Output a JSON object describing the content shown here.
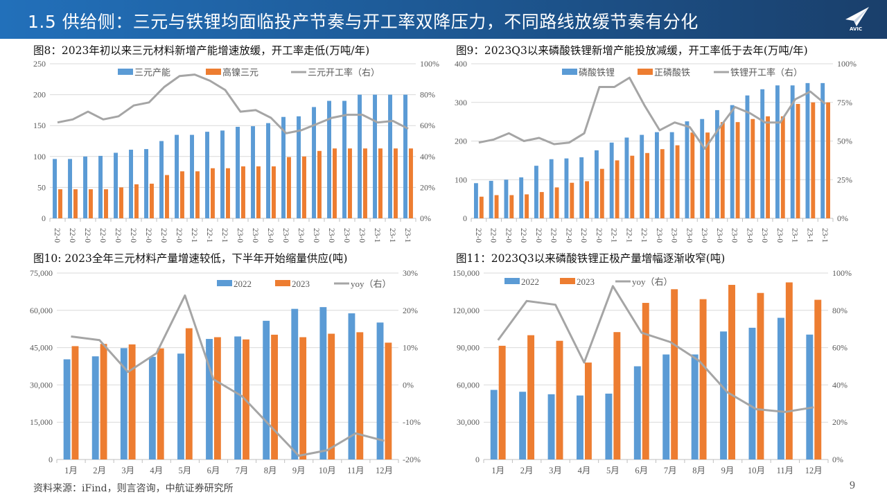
{
  "header": {
    "title": "1.5 供给侧：三元与铁锂均面临投产节奏与开工率双降压力，不同路线放缓节奏有分化",
    "logo_text": "AVIC"
  },
  "colors": {
    "header": "#1f5a96",
    "bar_a": "#5b9bd5",
    "bar_b": "#ed7d31",
    "line": "#a5a5a5"
  },
  "footer": {
    "source": "资料来源：iFind，则言咨询，中航证券研究所",
    "page": "9"
  },
  "chart_data": [
    {
      "type": "bar+line",
      "title": "图8：2023年初以来三元材料新增产能增速放缓，开工率走低(万吨/年)",
      "categories": [
        "22-01",
        "22-02",
        "22-03",
        "22-04",
        "22-05",
        "22-06",
        "22-07",
        "22-08",
        "22-09",
        "22-10",
        "22-11",
        "22-12",
        "23-01",
        "23-02",
        "23-03",
        "23-04",
        "23-05",
        "23-06",
        "23-07",
        "23-08",
        "23-09",
        "23-10",
        "23-11",
        "23-12"
      ],
      "ylim": [
        0,
        250
      ],
      "y2lim": [
        0,
        100
      ],
      "yticks": [
        "0",
        "50",
        "100",
        "150",
        "200",
        "250"
      ],
      "y2ticks": [
        "0%",
        "20%",
        "40%",
        "60%",
        "80%",
        "100%"
      ],
      "grid": true,
      "legend": "top",
      "series": [
        {
          "name": "三元产能",
          "kind": "bar",
          "values": [
            96,
            96,
            100,
            101,
            106,
            111,
            112,
            125,
            135,
            135,
            140,
            142,
            148,
            149,
            154,
            164,
            165,
            180,
            190,
            190,
            200,
            200,
            200,
            200
          ]
        },
        {
          "name": "高镍三元",
          "kind": "bar",
          "values": [
            47,
            47,
            47,
            47,
            50,
            55,
            56,
            70,
            76,
            76,
            81,
            81,
            84,
            84,
            84,
            99,
            100,
            109,
            113,
            113,
            113,
            113,
            113,
            113
          ]
        },
        {
          "name": "三元开工率（右）",
          "kind": "line",
          "axis": "right",
          "values": [
            62,
            64,
            69,
            64,
            66,
            73,
            75,
            85,
            92,
            93,
            89,
            83,
            69,
            70,
            65,
            55,
            57,
            61,
            65,
            67,
            67,
            62,
            63,
            58
          ]
        }
      ]
    },
    {
      "type": "bar+line",
      "title": "图9：2023Q3以来磷酸铁锂新增产能投放减缓，开工率低于去年(万吨/年)",
      "categories": [
        "22-01",
        "22-02",
        "22-03",
        "22-04",
        "22-05",
        "22-06",
        "22-07",
        "22-08",
        "22-09",
        "22-10",
        "22-11",
        "22-12",
        "23-01",
        "23-02",
        "23-03",
        "23-04",
        "23-05",
        "23-06",
        "23-07",
        "23-08",
        "23-09",
        "23-10",
        "23-11",
        "23-12"
      ],
      "ylim": [
        0,
        400
      ],
      "y2lim": [
        0,
        100
      ],
      "yticks": [
        "0",
        "100",
        "200",
        "300",
        "400"
      ],
      "y2ticks": [
        "0%",
        "25%",
        "50%",
        "75%",
        "100%"
      ],
      "grid": true,
      "legend": "top",
      "series": [
        {
          "name": "磷酸铁锂",
          "kind": "bar",
          "values": [
            91,
            97,
            100,
            106,
            136,
            153,
            155,
            158,
            176,
            196,
            209,
            216,
            223,
            223,
            251,
            257,
            280,
            293,
            318,
            334,
            344,
            344,
            350,
            350
          ]
        },
        {
          "name": "正磷酸铁",
          "kind": "bar",
          "values": [
            56,
            60,
            60,
            62,
            68,
            80,
            92,
            96,
            128,
            150,
            162,
            169,
            179,
            189,
            222,
            222,
            249,
            249,
            257,
            264,
            264,
            296,
            300,
            300
          ]
        },
        {
          "name": "铁锂开工率（右）",
          "kind": "line",
          "axis": "right",
          "values": [
            49,
            51,
            55,
            50,
            52,
            48,
            49,
            55,
            85,
            85,
            91,
            73,
            57,
            62,
            59,
            45,
            59,
            72,
            68,
            62,
            62,
            77,
            82,
            74
          ]
        }
      ]
    },
    {
      "type": "bar+line",
      "title": "图10:   2023全年三元材料产量增速较低，下半年开始缩量供应(吨)",
      "categories": [
        "1月",
        "2月",
        "3月",
        "4月",
        "5月",
        "6月",
        "7月",
        "8月",
        "9月",
        "10月",
        "11月",
        "12月"
      ],
      "ylim": [
        0,
        75000
      ],
      "y2lim": [
        -20,
        30
      ],
      "yticks": [
        "0",
        "15,000",
        "30,000",
        "45,000",
        "60,000",
        "75,000"
      ],
      "y2ticks": [
        "-20%",
        "-10%",
        "0%",
        "10%",
        "20%",
        "30%"
      ],
      "grid": true,
      "legend": "top",
      "series": [
        {
          "name": "2022",
          "kind": "bar",
          "values": [
            40300,
            41500,
            44800,
            41300,
            42600,
            48500,
            49500,
            55800,
            60600,
            61300,
            58800,
            55100
          ]
        },
        {
          "name": "2023",
          "kind": "bar",
          "values": [
            45600,
            46500,
            46300,
            44700,
            52800,
            49200,
            48300,
            50200,
            49200,
            50600,
            51200,
            47000
          ]
        },
        {
          "name": "yoy（右）",
          "kind": "line",
          "axis": "right",
          "values": [
            13,
            12,
            3.5,
            8.5,
            24,
            1.5,
            -3,
            -11,
            -19,
            -17.5,
            -13,
            -15
          ]
        }
      ]
    },
    {
      "type": "bar+line",
      "title": "图11：2023Q3以来磷酸铁锂正极产量增幅逐渐收窄(吨)",
      "categories": [
        "1月",
        "2月",
        "3月",
        "4月",
        "5月",
        "6月",
        "7月",
        "8月",
        "9月",
        "10月",
        "11月",
        "12月"
      ],
      "ylim": [
        0,
        150000
      ],
      "y2lim": [
        0,
        100
      ],
      "yticks": [
        "0",
        "30,000",
        "60,000",
        "90,000",
        "120,000",
        "150,000"
      ],
      "y2ticks": [
        "0%",
        "20%",
        "40%",
        "60%",
        "80%",
        "100%"
      ],
      "grid": true,
      "legend": "top-left",
      "series": [
        {
          "name": "2022",
          "kind": "bar",
          "values": [
            56000,
            54500,
            52500,
            51500,
            53000,
            75000,
            84500,
            84500,
            103000,
            106000,
            114000,
            100500
          ]
        },
        {
          "name": "2023",
          "kind": "bar",
          "values": [
            91500,
            100000,
            95500,
            78000,
            102500,
            126000,
            137000,
            129000,
            140500,
            134000,
            142500,
            128500
          ]
        },
        {
          "name": "yoy（右）",
          "kind": "line",
          "axis": "right",
          "values": [
            64,
            85,
            83,
            52,
            93,
            68,
            63,
            53,
            36,
            27,
            25.5,
            28
          ]
        }
      ]
    }
  ]
}
